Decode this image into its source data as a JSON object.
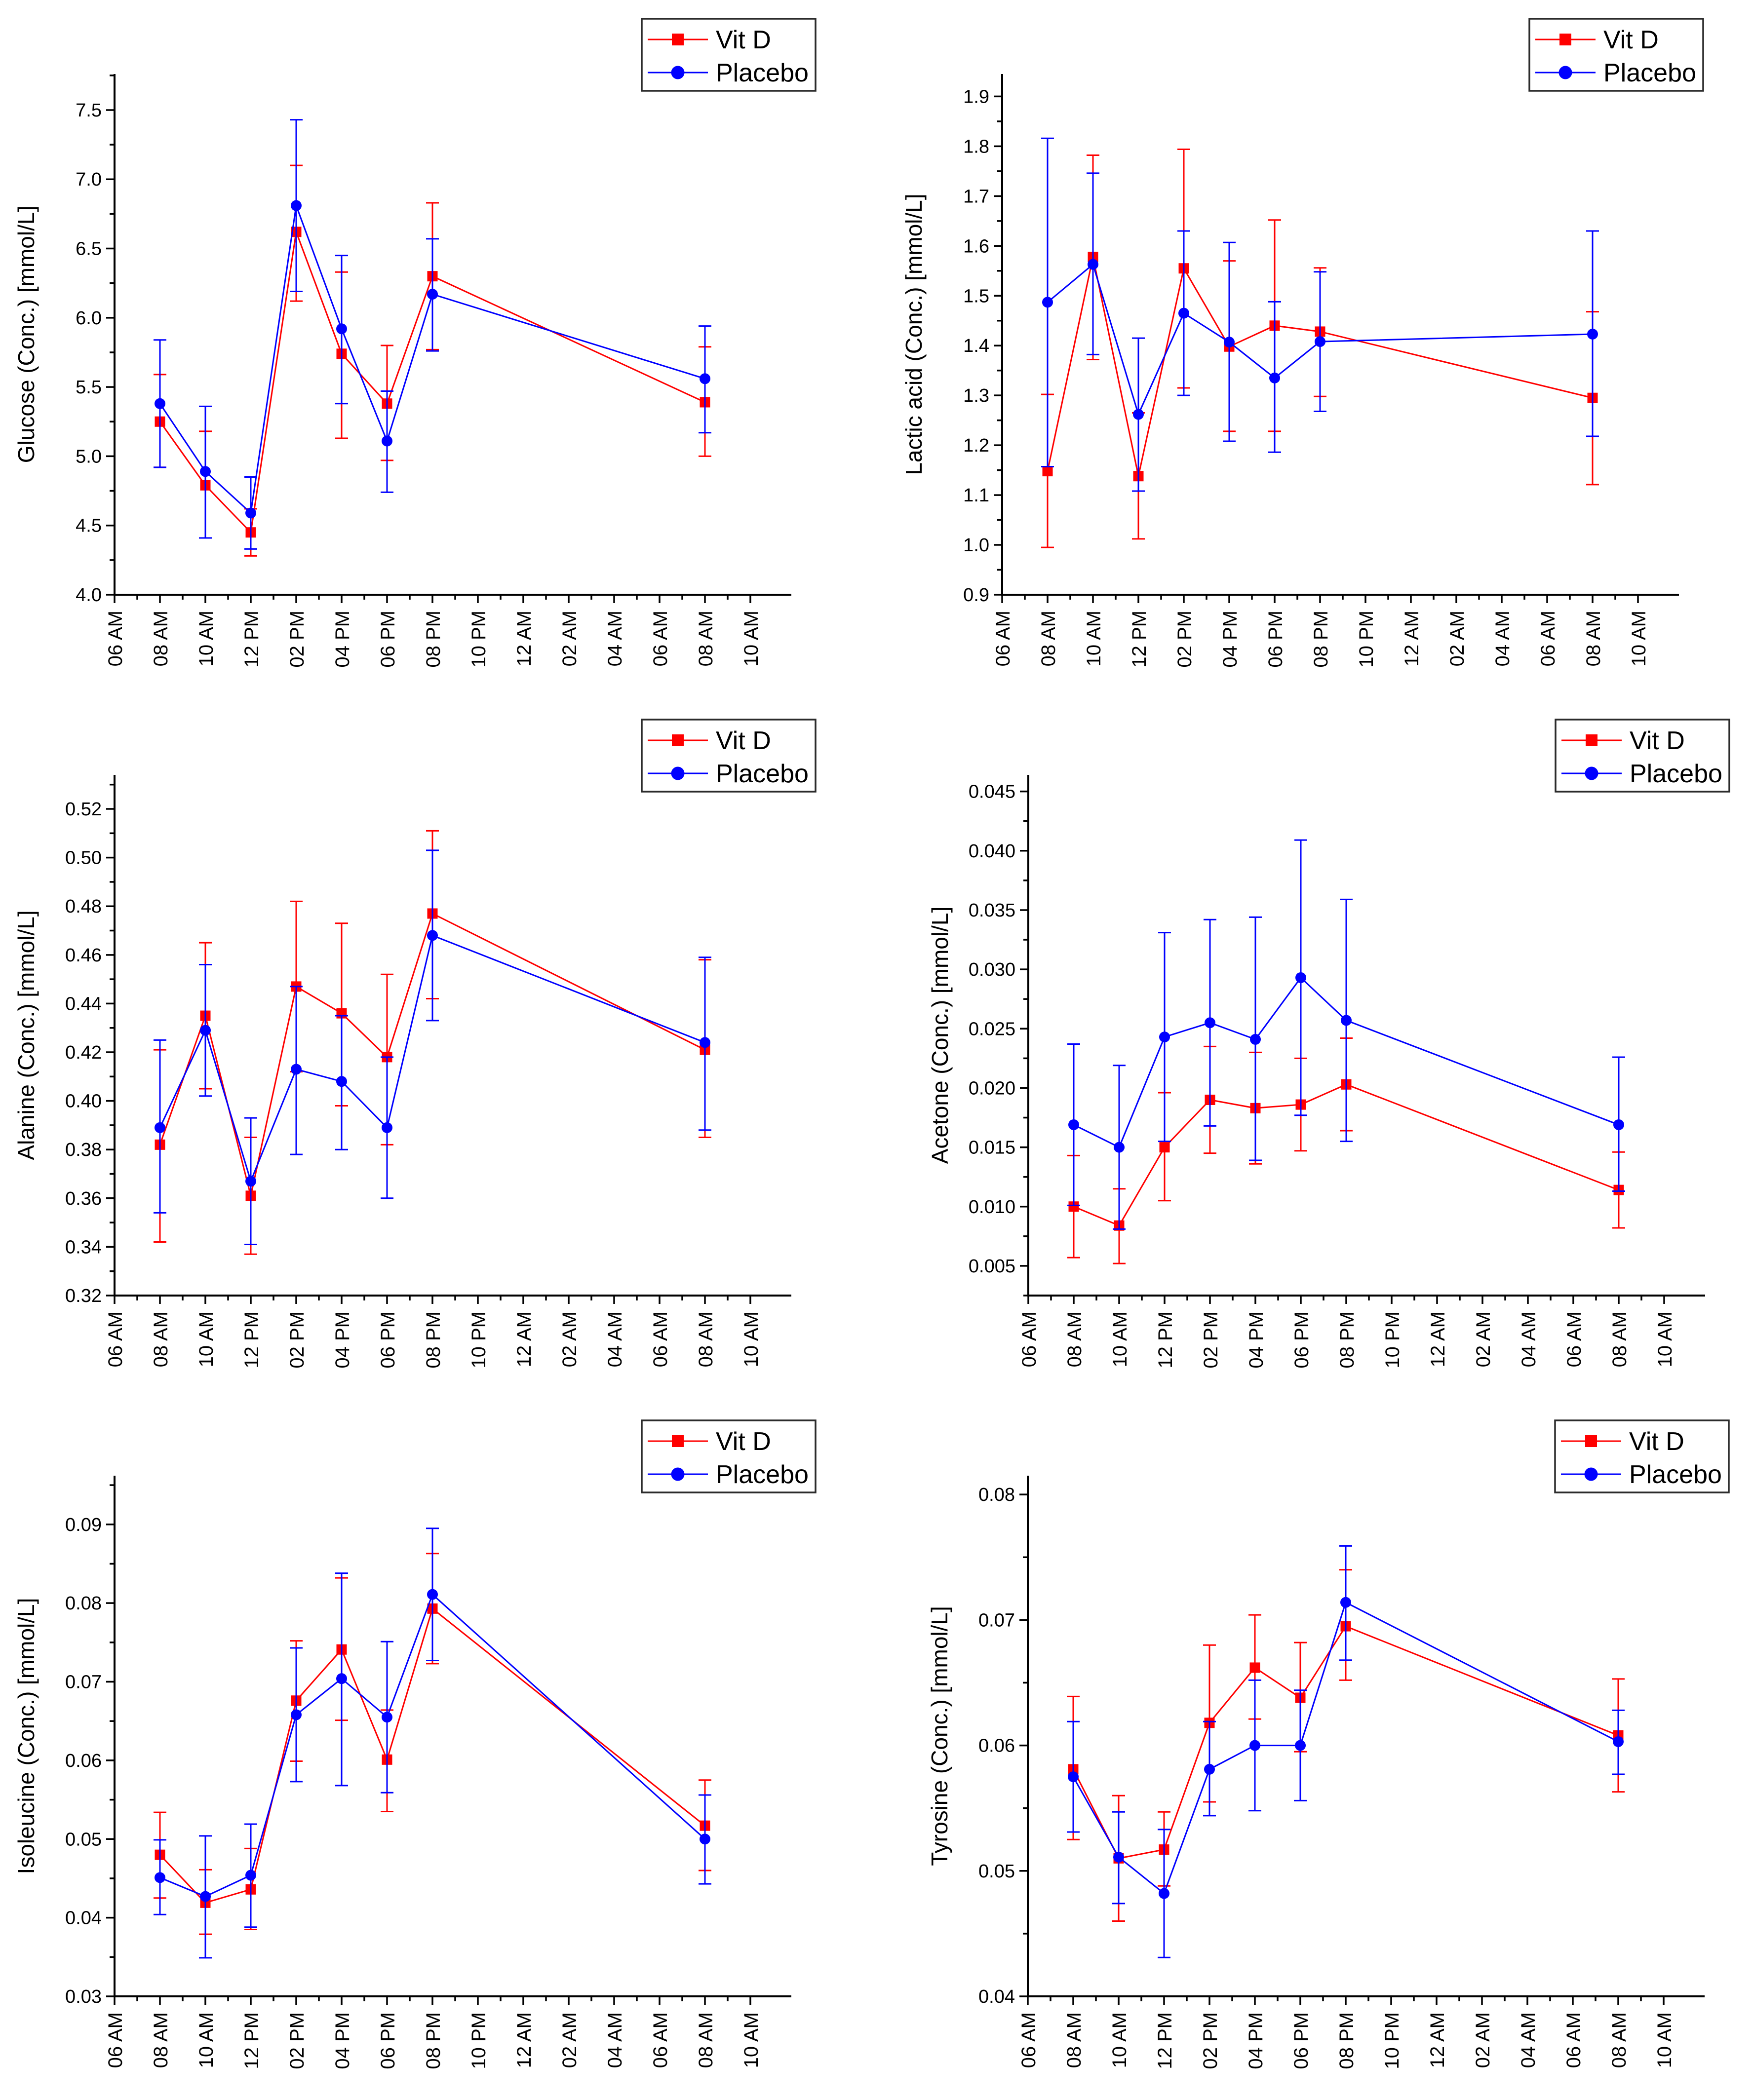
{
  "figure": {
    "background": "#ffffff"
  },
  "legend": {
    "position": "top-right",
    "border_color": "#2b2b2b",
    "items": [
      {
        "label": "Vit D",
        "color": "#ff0000",
        "marker": "square"
      },
      {
        "label": "Placebo",
        "color": "#0000ff",
        "marker": "circle"
      }
    ]
  },
  "x_axis": {
    "tick_labels": [
      "06 AM",
      "08 AM",
      "10 AM",
      "12 PM",
      "02 PM",
      "04 PM",
      "06 PM",
      "08 PM",
      "10 PM",
      "12 AM",
      "02 AM",
      "04 AM",
      "06 AM",
      "08 AM",
      "10 AM"
    ],
    "point_times": [
      "08 AM",
      "10 AM",
      "12 PM",
      "02 PM",
      "04 PM",
      "06 PM",
      "08 PM",
      "08 AM"
    ]
  },
  "chart_data": [
    {
      "id": "glucose",
      "type": "line",
      "ylabel": "Glucose (Conc.) [mmol/L]",
      "xlabel": "",
      "grid": false,
      "ylim": [
        4.0,
        7.76
      ],
      "yticks": [
        4.0,
        4.5,
        5.0,
        5.5,
        6.0,
        6.5,
        7.0,
        7.5
      ],
      "ytick_labels": [
        "4.0",
        "4.5",
        "5.0",
        "5.5",
        "6.0",
        "6.5",
        "7.0",
        "7.5"
      ],
      "x_positions": [
        1,
        2,
        3,
        4,
        5,
        6,
        7,
        13
      ],
      "series": [
        {
          "name": "Vit D",
          "color": "#ff0000",
          "marker": "square",
          "values": [
            5.25,
            4.79,
            4.45,
            6.62,
            5.74,
            5.38,
            6.3,
            5.39
          ],
          "err_low": [
            4.92,
            4.41,
            4.28,
            6.12,
            5.13,
            4.97,
            5.77,
            5.0
          ],
          "err_high": [
            5.59,
            5.18,
            4.62,
            7.1,
            6.33,
            5.8,
            6.83,
            5.79
          ]
        },
        {
          "name": "Placebo",
          "color": "#0000ff",
          "marker": "circle",
          "values": [
            5.38,
            4.89,
            4.59,
            6.81,
            5.92,
            5.11,
            6.17,
            5.56
          ],
          "err_low": [
            4.92,
            4.41,
            4.33,
            6.19,
            5.38,
            4.74,
            5.76,
            5.17
          ],
          "err_high": [
            5.84,
            5.36,
            4.85,
            7.43,
            6.45,
            5.47,
            6.57,
            5.94
          ]
        }
      ]
    },
    {
      "id": "lactic-acid",
      "type": "line",
      "ylabel": "Lactic acid (Conc.) [mmol/L]",
      "xlabel": "",
      "grid": false,
      "ylim": [
        0.9,
        1.945
      ],
      "yticks": [
        0.9,
        1.0,
        1.1,
        1.2,
        1.3,
        1.4,
        1.5,
        1.6,
        1.7,
        1.8,
        1.9
      ],
      "ytick_labels": [
        "0.9",
        "1.0",
        "1.1",
        "1.2",
        "1.3",
        "1.4",
        "1.5",
        "1.6",
        "1.7",
        "1.8",
        "1.9"
      ],
      "x_positions": [
        1,
        2,
        3,
        4,
        5,
        6,
        7,
        13
      ],
      "series": [
        {
          "name": "Vit D",
          "color": "#ff0000",
          "marker": "square",
          "values": [
            1.148,
            1.578,
            1.138,
            1.555,
            1.398,
            1.44,
            1.428,
            1.295
          ],
          "err_low": [
            0.995,
            1.372,
            1.012,
            1.315,
            1.228,
            1.228,
            1.298,
            1.121
          ],
          "err_high": [
            1.302,
            1.782,
            1.265,
            1.794,
            1.57,
            1.652,
            1.556,
            1.468
          ]
        },
        {
          "name": "Placebo",
          "color": "#0000ff",
          "marker": "circle",
          "values": [
            1.487,
            1.563,
            1.262,
            1.465,
            1.407,
            1.335,
            1.408,
            1.423
          ],
          "err_low": [
            1.157,
            1.382,
            1.108,
            1.3,
            1.208,
            1.186,
            1.268,
            1.218
          ],
          "err_high": [
            1.816,
            1.746,
            1.415,
            1.63,
            1.607,
            1.488,
            1.548,
            1.63
          ]
        }
      ]
    },
    {
      "id": "alanine",
      "type": "line",
      "ylabel": "Alanine (Conc.) [mmol/L]",
      "xlabel": "",
      "grid": false,
      "ylim": [
        0.32,
        0.534
      ],
      "yticks": [
        0.32,
        0.34,
        0.36,
        0.38,
        0.4,
        0.42,
        0.44,
        0.46,
        0.48,
        0.5,
        0.52
      ],
      "ytick_labels": [
        "0.32",
        "0.34",
        "0.36",
        "0.38",
        "0.40",
        "0.42",
        "0.44",
        "0.46",
        "0.48",
        "0.50",
        "0.52"
      ],
      "x_positions": [
        1,
        2,
        3,
        4,
        5,
        6,
        7,
        13
      ],
      "series": [
        {
          "name": "Vit D",
          "color": "#ff0000",
          "marker": "square",
          "values": [
            0.382,
            0.435,
            0.361,
            0.447,
            0.436,
            0.418,
            0.477,
            0.421
          ],
          "err_low": [
            0.342,
            0.405,
            0.337,
            0.412,
            0.398,
            0.382,
            0.442,
            0.385
          ],
          "err_high": [
            0.421,
            0.465,
            0.385,
            0.482,
            0.473,
            0.452,
            0.511,
            0.458
          ]
        },
        {
          "name": "Placebo",
          "color": "#0000ff",
          "marker": "circle",
          "values": [
            0.389,
            0.429,
            0.367,
            0.413,
            0.408,
            0.389,
            0.468,
            0.424
          ],
          "err_low": [
            0.354,
            0.402,
            0.341,
            0.378,
            0.38,
            0.36,
            0.433,
            0.388
          ],
          "err_high": [
            0.425,
            0.456,
            0.393,
            0.447,
            0.435,
            0.418,
            0.503,
            0.459
          ]
        }
      ]
    },
    {
      "id": "acetone",
      "type": "line",
      "ylabel": "Acetone (Conc.) [mmol/L]",
      "xlabel": "",
      "grid": false,
      "ylim": [
        0.0025,
        0.0464
      ],
      "yticks": [
        0.005,
        0.01,
        0.015,
        0.02,
        0.025,
        0.03,
        0.035,
        0.04,
        0.045
      ],
      "ytick_labels": [
        "0.005",
        "0.010",
        "0.015",
        "0.020",
        "0.025",
        "0.030",
        "0.035",
        "0.040",
        "0.045"
      ],
      "x_positions": [
        1,
        2,
        3,
        4,
        5,
        6,
        7,
        13
      ],
      "series": [
        {
          "name": "Vit D",
          "color": "#ff0000",
          "marker": "square",
          "values": [
            0.01,
            0.0084,
            0.015,
            0.019,
            0.0183,
            0.0186,
            0.0203,
            0.0114
          ],
          "err_low": [
            0.0057,
            0.0052,
            0.0105,
            0.0145,
            0.0136,
            0.0147,
            0.0164,
            0.0082
          ],
          "err_high": [
            0.0143,
            0.0115,
            0.0196,
            0.0235,
            0.023,
            0.0225,
            0.0242,
            0.0146
          ]
        },
        {
          "name": "Placebo",
          "color": "#0000ff",
          "marker": "circle",
          "values": [
            0.0169,
            0.015,
            0.0243,
            0.0255,
            0.0241,
            0.0293,
            0.0257,
            0.0169
          ],
          "err_low": [
            0.0101,
            0.0081,
            0.0155,
            0.0168,
            0.0139,
            0.0177,
            0.0155,
            0.0113
          ],
          "err_high": [
            0.0237,
            0.0219,
            0.0331,
            0.0342,
            0.0344,
            0.0409,
            0.0359,
            0.0226
          ]
        }
      ]
    },
    {
      "id": "isoleucine",
      "type": "line",
      "ylabel": "Isoleucine (Conc.) [mmol/L]",
      "xlabel": "",
      "grid": false,
      "ylim": [
        0.03,
        0.0962
      ],
      "yticks": [
        0.03,
        0.04,
        0.05,
        0.06,
        0.07,
        0.08,
        0.09
      ],
      "ytick_labels": [
        "0.03",
        "0.04",
        "0.05",
        "0.06",
        "0.07",
        "0.08",
        "0.09"
      ],
      "x_positions": [
        1,
        2,
        3,
        4,
        5,
        6,
        7,
        13
      ],
      "series": [
        {
          "name": "Vit D",
          "color": "#ff0000",
          "marker": "square",
          "values": [
            0.048,
            0.0419,
            0.0436,
            0.0676,
            0.0741,
            0.0601,
            0.0793,
            0.0517
          ],
          "err_low": [
            0.0425,
            0.0379,
            0.0385,
            0.0599,
            0.0651,
            0.0535,
            0.0723,
            0.046
          ],
          "err_high": [
            0.0534,
            0.0461,
            0.0488,
            0.0752,
            0.0832,
            0.0664,
            0.0863,
            0.0575
          ]
        },
        {
          "name": "Placebo",
          "color": "#0000ff",
          "marker": "circle",
          "values": [
            0.0451,
            0.0427,
            0.0454,
            0.0658,
            0.0704,
            0.0655,
            0.0811,
            0.05
          ],
          "err_low": [
            0.0404,
            0.0349,
            0.0388,
            0.0573,
            0.0568,
            0.0559,
            0.0727,
            0.0443
          ],
          "err_high": [
            0.0499,
            0.0504,
            0.0519,
            0.0743,
            0.0838,
            0.0751,
            0.0895,
            0.0556
          ]
        }
      ]
    },
    {
      "id": "tyrosine",
      "type": "line",
      "ylabel": "Tyrosine (Conc.) [mmol/L]",
      "xlabel": "",
      "grid": false,
      "ylim": [
        0.04,
        0.0815
      ],
      "yticks": [
        0.04,
        0.05,
        0.06,
        0.07,
        0.08
      ],
      "ytick_labels": [
        "0.04",
        "0.05",
        "0.06",
        "0.07",
        "0.08"
      ],
      "x_positions": [
        1,
        2,
        3,
        4,
        5,
        6,
        7,
        13
      ],
      "series": [
        {
          "name": "Vit D",
          "color": "#ff0000",
          "marker": "square",
          "values": [
            0.0581,
            0.051,
            0.0517,
            0.0618,
            0.0662,
            0.0638,
            0.0695,
            0.0608
          ],
          "err_low": [
            0.0525,
            0.046,
            0.0488,
            0.0555,
            0.0621,
            0.0595,
            0.0652,
            0.0563
          ],
          "err_high": [
            0.0639,
            0.056,
            0.0547,
            0.068,
            0.0704,
            0.0682,
            0.074,
            0.0653
          ]
        },
        {
          "name": "Placebo",
          "color": "#0000ff",
          "marker": "circle",
          "values": [
            0.0575,
            0.0511,
            0.0482,
            0.0581,
            0.06,
            0.06,
            0.0714,
            0.0603
          ],
          "err_low": [
            0.0531,
            0.0474,
            0.0431,
            0.0544,
            0.0548,
            0.0556,
            0.0668,
            0.0577
          ],
          "err_high": [
            0.0619,
            0.0547,
            0.0533,
            0.0619,
            0.0652,
            0.0644,
            0.0759,
            0.0628
          ]
        }
      ]
    }
  ]
}
